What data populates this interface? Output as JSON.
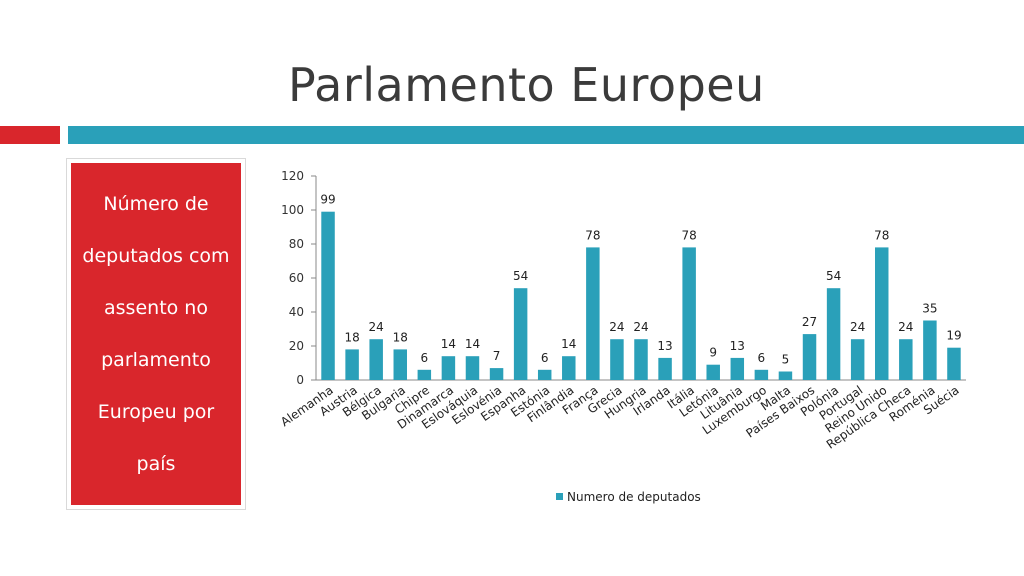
{
  "slide": {
    "title": "Parlamento Europeu",
    "side_text": "Número de deputados com assento no parlamento Europeu por país"
  },
  "colors": {
    "accent_red": "#d9262c",
    "accent_teal": "#2aa0b9",
    "bar": "#2aa0b9"
  },
  "chart_data": {
    "type": "bar",
    "title": "",
    "xlabel": "",
    "ylabel": "",
    "ylim": [
      0,
      120
    ],
    "yticks": [
      0,
      20,
      40,
      60,
      80,
      100,
      120
    ],
    "legend": [
      "Numero de deputados"
    ],
    "categories": [
      "Alemanha",
      "Austria",
      "Bélgica",
      "Bulgaria",
      "Chipre",
      "Dinamarca",
      "Eslováquia",
      "Eslovénia",
      "Espanha",
      "Estónia",
      "Finlândia",
      "França",
      "Grecia",
      "Hungria",
      "Irlanda",
      "Itália",
      "Letónia",
      "Lituânia",
      "Luxemburgo",
      "Malta",
      "Países Baixos",
      "Polónia",
      "Portugal",
      "Reino Unido",
      "República Checa",
      "Roménia",
      "Suécia"
    ],
    "series": [
      {
        "name": "Numero de deputados",
        "values": [
          99,
          18,
          24,
          18,
          6,
          14,
          14,
          7,
          54,
          6,
          14,
          78,
          24,
          24,
          13,
          78,
          9,
          13,
          6,
          5,
          27,
          54,
          24,
          78,
          24,
          35,
          19
        ]
      }
    ]
  }
}
